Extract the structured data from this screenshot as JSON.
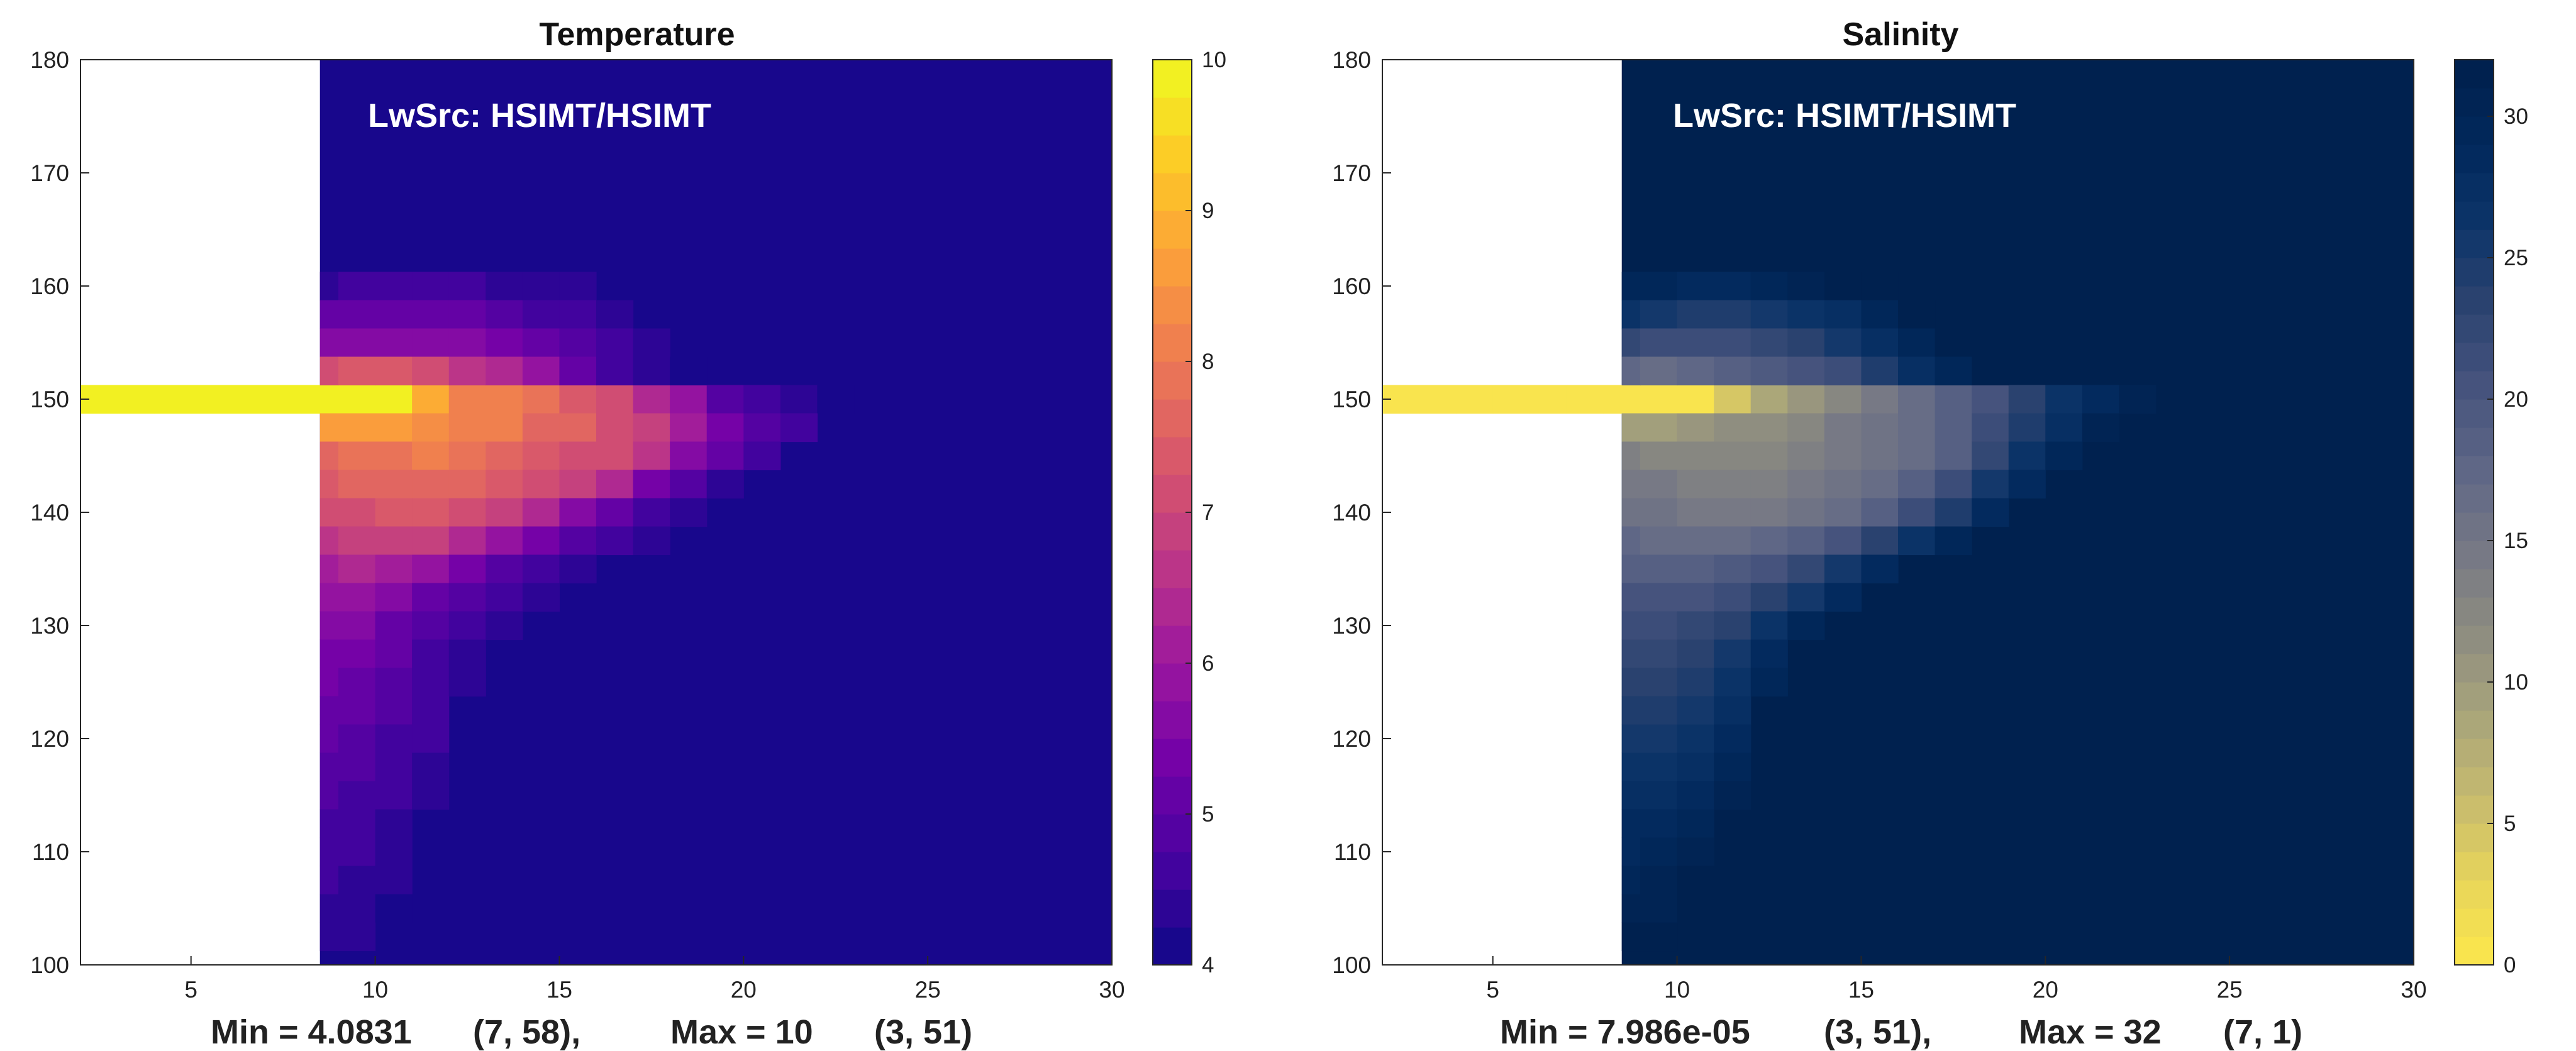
{
  "chart_data": [
    {
      "type": "heatmap",
      "title": "Temperature",
      "annotation": "LwSrc: HSIMT/HSIMT",
      "footer": {
        "min_label": "Min = 4.0831",
        "min_loc": "(7, 58),",
        "max_label": "Max = 10",
        "max_loc": "(3, 51)"
      },
      "colormap": "plasma",
      "xlim": [
        2,
        30
      ],
      "ylim": [
        100,
        180
      ],
      "xticks": [
        5,
        10,
        15,
        20,
        25,
        30
      ],
      "yticks": [
        100,
        110,
        120,
        130,
        140,
        150,
        160,
        170,
        180
      ],
      "colorbar": {
        "limits": [
          4,
          10
        ],
        "ticks": [
          4,
          5,
          6,
          7,
          8,
          9,
          10
        ]
      },
      "background_value": 4.1,
      "land_mask_x_range": [
        2,
        8.5
      ],
      "plume_rows": [
        {
          "y": 150,
          "x_start": 2,
          "values": [
            10,
            10,
            10,
            10,
            10,
            10,
            10,
            10,
            9.9,
            8.8,
            8.2,
            8.1,
            7.8,
            7.3,
            7.0,
            6.4,
            5.8,
            4.8,
            4.6,
            4.4,
            4.2
          ]
        },
        {
          "y": 147.5,
          "x_start": 8,
          "values": [
            8.6,
            8.6,
            8.5,
            8.4,
            8.2,
            8.0,
            7.7,
            7.5,
            7.2,
            6.8,
            6.0,
            5.4,
            4.8,
            4.5
          ]
        },
        {
          "y": 145,
          "x_start": 8,
          "values": [
            7.6,
            7.8,
            7.9,
            8.0,
            7.9,
            7.6,
            7.4,
            7.2,
            7.0,
            6.6,
            5.7,
            5.0,
            4.6
          ]
        },
        {
          "y": 142.5,
          "x_start": 8,
          "values": [
            7.3,
            7.5,
            7.6,
            7.7,
            7.6,
            7.3,
            7.1,
            6.8,
            6.3,
            5.4,
            4.8,
            4.4
          ]
        },
        {
          "y": 140,
          "x_start": 8,
          "values": [
            7.0,
            7.2,
            7.3,
            7.3,
            7.1,
            6.8,
            6.4,
            5.7,
            5.0,
            4.6,
            4.3
          ]
        },
        {
          "y": 137.5,
          "x_start": 8,
          "values": [
            6.6,
            6.8,
            6.9,
            6.8,
            6.4,
            5.8,
            5.3,
            4.8,
            4.5,
            4.3
          ]
        },
        {
          "y": 135,
          "x_start": 8,
          "values": [
            6.2,
            6.3,
            6.2,
            5.8,
            5.3,
            4.8,
            4.5,
            4.3
          ]
        },
        {
          "y": 132.5,
          "x_start": 8,
          "values": [
            5.9,
            5.9,
            5.6,
            5.2,
            4.8,
            4.5,
            4.3
          ]
        },
        {
          "y": 130,
          "x_start": 8,
          "values": [
            5.6,
            5.5,
            5.2,
            4.9,
            4.6,
            4.3
          ]
        },
        {
          "y": 127.5,
          "x_start": 8,
          "values": [
            5.4,
            5.3,
            5.0,
            4.7,
            4.4
          ]
        },
        {
          "y": 125,
          "x_start": 8,
          "values": [
            5.3,
            5.2,
            4.9,
            4.6,
            4.3
          ]
        },
        {
          "y": 122.5,
          "x_start": 8,
          "values": [
            5.1,
            5.0,
            4.8,
            4.5
          ]
        },
        {
          "y": 120,
          "x_start": 8,
          "values": [
            5.0,
            4.9,
            4.7,
            4.5
          ]
        },
        {
          "y": 117.5,
          "x_start": 8,
          "values": [
            4.9,
            4.8,
            4.6,
            4.4
          ]
        },
        {
          "y": 115,
          "x_start": 8,
          "values": [
            4.8,
            4.7,
            4.5,
            4.3
          ]
        },
        {
          "y": 112.5,
          "x_start": 8,
          "values": [
            4.7,
            4.6,
            4.4
          ]
        },
        {
          "y": 110,
          "x_start": 8,
          "values": [
            4.6,
            4.5,
            4.4
          ]
        },
        {
          "y": 107.5,
          "x_start": 8,
          "values": [
            4.5,
            4.4,
            4.3
          ]
        },
        {
          "y": 105,
          "x_start": 8,
          "values": [
            4.4,
            4.4,
            4.2
          ]
        },
        {
          "y": 102.5,
          "x_start": 8,
          "values": [
            4.3,
            4.3
          ]
        },
        {
          "y": 160,
          "x_start": 8,
          "values": [
            4.4,
            4.5,
            4.6,
            4.6,
            4.5,
            4.4,
            4.3,
            4.3
          ]
        },
        {
          "y": 157.5,
          "x_start": 8,
          "values": [
            5.0,
            5.1,
            5.2,
            5.2,
            5.0,
            4.9,
            4.7,
            4.5,
            4.3
          ]
        },
        {
          "y": 155,
          "x_start": 8,
          "values": [
            5.5,
            5.6,
            5.7,
            5.7,
            5.5,
            5.3,
            5.0,
            4.8,
            4.5,
            4.3
          ]
        },
        {
          "y": 152.5,
          "x_start": 8,
          "values": [
            7.2,
            7.4,
            7.3,
            7.0,
            6.7,
            6.3,
            5.9,
            5.2,
            4.7,
            4.4,
            4.2
          ]
        }
      ]
    },
    {
      "type": "heatmap",
      "title": "Salinity",
      "annotation": "LwSrc: HSIMT/HSIMT",
      "footer": {
        "min_label": "Min = 7.986e-05",
        "min_loc": "(3, 51),",
        "max_label": "Max = 32",
        "max_loc": "(7, 1)"
      },
      "colormap": "cividis-reversed",
      "xlim": [
        2,
        30
      ],
      "ylim": [
        100,
        180
      ],
      "xticks": [
        5,
        10,
        15,
        20,
        25,
        30
      ],
      "yticks": [
        100,
        110,
        120,
        130,
        140,
        150,
        160,
        170,
        180
      ],
      "colorbar": {
        "limits": [
          0,
          32
        ],
        "ticks": [
          0,
          5,
          10,
          15,
          20,
          25,
          30
        ]
      },
      "background_value": 32,
      "land_mask_x_range": [
        2,
        8.5
      ],
      "plume_rows": [
        {
          "y": 150,
          "x_start": 2,
          "values": [
            0,
            0,
            0,
            0,
            0,
            0,
            0,
            0,
            0.5,
            4,
            8,
            10,
            12,
            14,
            16,
            18,
            20,
            23,
            26,
            28,
            30
          ]
        },
        {
          "y": 147.5,
          "x_start": 8,
          "values": [
            9,
            9,
            10,
            11,
            11,
            12,
            14,
            15,
            16,
            18,
            21,
            24,
            27,
            30
          ]
        },
        {
          "y": 145,
          "x_start": 8,
          "values": [
            13,
            12,
            12,
            12,
            12,
            13,
            14,
            15,
            16,
            18,
            22,
            26,
            29
          ]
        },
        {
          "y": 142.5,
          "x_start": 8,
          "values": [
            14,
            14,
            13,
            13,
            13,
            14,
            15,
            16,
            18,
            21,
            25,
            28
          ]
        },
        {
          "y": 140,
          "x_start": 8,
          "values": [
            15,
            15,
            14,
            14,
            14,
            15,
            16,
            18,
            21,
            24,
            28
          ]
        },
        {
          "y": 137.5,
          "x_start": 8,
          "values": [
            17,
            16,
            16,
            16,
            17,
            18,
            20,
            23,
            26,
            29
          ]
        },
        {
          "y": 135,
          "x_start": 8,
          "values": [
            18,
            18,
            18,
            19,
            20,
            22,
            25,
            28
          ]
        },
        {
          "y": 132.5,
          "x_start": 8,
          "values": [
            20,
            20,
            20,
            21,
            23,
            25,
            28
          ]
        },
        {
          "y": 130,
          "x_start": 8,
          "values": [
            21,
            21,
            22,
            23,
            26,
            29
          ]
        },
        {
          "y": 127.5,
          "x_start": 8,
          "values": [
            22,
            22,
            23,
            25,
            28
          ]
        },
        {
          "y": 125,
          "x_start": 8,
          "values": [
            23,
            23,
            24,
            26,
            29
          ]
        },
        {
          "y": 122.5,
          "x_start": 8,
          "values": [
            24,
            24,
            25,
            27
          ]
        },
        {
          "y": 120,
          "x_start": 8,
          "values": [
            25,
            25,
            26,
            28
          ]
        },
        {
          "y": 117.5,
          "x_start": 8,
          "values": [
            26,
            26,
            27,
            29
          ]
        },
        {
          "y": 115,
          "x_start": 8,
          "values": [
            27,
            27,
            28,
            30
          ]
        },
        {
          "y": 112.5,
          "x_start": 8,
          "values": [
            28,
            28,
            29
          ]
        },
        {
          "y": 110,
          "x_start": 8,
          "values": [
            28,
            29,
            30
          ]
        },
        {
          "y": 107.5,
          "x_start": 8,
          "values": [
            29,
            30,
            31
          ]
        },
        {
          "y": 105,
          "x_start": 8,
          "values": [
            30,
            30,
            31
          ]
        },
        {
          "y": 102.5,
          "x_start": 8,
          "values": [
            31,
            31
          ]
        },
        {
          "y": 160,
          "x_start": 8,
          "values": [
            29,
            29,
            28,
            28,
            29,
            30,
            31,
            31
          ]
        },
        {
          "y": 157.5,
          "x_start": 8,
          "values": [
            26,
            25,
            24,
            24,
            25,
            26,
            27,
            29,
            31
          ]
        },
        {
          "y": 155,
          "x_start": 8,
          "values": [
            22,
            21,
            21,
            21,
            22,
            23,
            25,
            27,
            29,
            31
          ]
        },
        {
          "y": 152.5,
          "x_start": 8,
          "values": [
            17,
            16,
            17,
            18,
            19,
            20,
            21,
            24,
            27,
            29,
            31
          ]
        }
      ]
    }
  ]
}
